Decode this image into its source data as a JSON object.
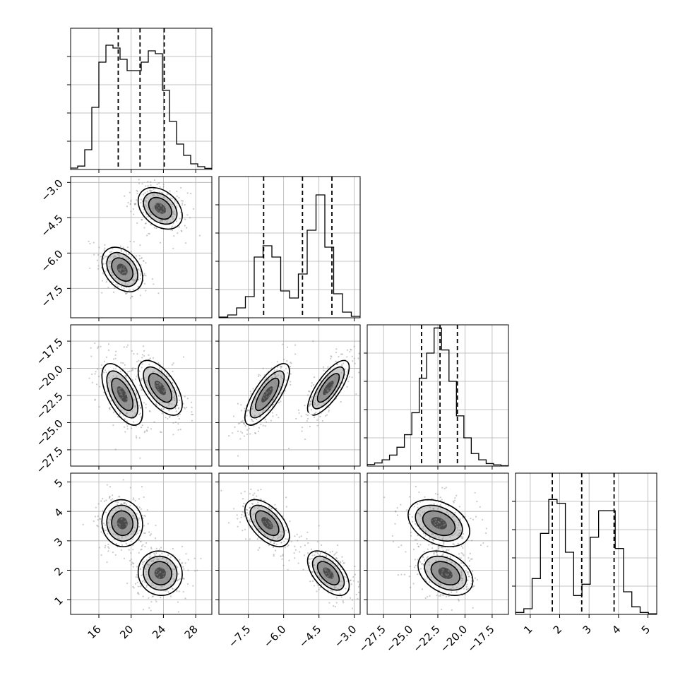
{
  "chart_data": {
    "type": "corner",
    "grid": true,
    "parameters": [
      {
        "range": [
          12.5,
          30
        ],
        "ticks": [
          16,
          20,
          24,
          28
        ],
        "tick_labels": [
          "16",
          "20",
          "24",
          "28"
        ],
        "quantiles": [
          18.4,
          21.1,
          24.1
        ],
        "hist": [
          0.005,
          0.012,
          0.07,
          0.22,
          0.38,
          0.44,
          0.43,
          0.39,
          0.35,
          0.35,
          0.38,
          0.42,
          0.41,
          0.28,
          0.17,
          0.09,
          0.05,
          0.02,
          0.01,
          0.004
        ],
        "hist_ylim": [
          0,
          0.5
        ]
      },
      {
        "range": [
          -8.75,
          -2.75
        ],
        "ticks": [
          -7.5,
          -6.0,
          -4.5,
          -3.0
        ],
        "tick_labels": [
          "−7.5",
          "−6.0",
          "−4.5",
          "−3.0"
        ],
        "quantiles": [
          -6.85,
          -5.2,
          -3.95
        ],
        "hist": [
          0.005,
          0.02,
          0.07,
          0.15,
          0.43,
          0.51,
          0.43,
          0.19,
          0.14,
          0.31,
          0.62,
          0.87,
          0.5,
          0.17,
          0.04,
          0.01
        ],
        "hist_ylim": [
          0,
          1.0
        ]
      },
      {
        "range": [
          -29,
          -16
        ],
        "ticks": [
          -27.5,
          -25.0,
          -22.5,
          -20.0,
          -17.5
        ],
        "tick_labels": [
          "−27.5",
          "−25.0",
          "−22.5",
          "−20.0",
          "−17.5"
        ],
        "quantiles": [
          -24.0,
          -22.3,
          -20.7
        ],
        "hist": [
          0.005,
          0.01,
          0.02,
          0.035,
          0.06,
          0.1,
          0.17,
          0.28,
          0.36,
          0.44,
          0.37,
          0.27,
          0.16,
          0.09,
          0.04,
          0.02,
          0.008,
          0.004,
          0.001
        ],
        "hist_ylim": [
          0,
          0.45
        ]
      },
      {
        "range": [
          0.5,
          5.3
        ],
        "ticks": [
          1,
          2,
          3,
          4,
          5
        ],
        "tick_labels": [
          "1",
          "2",
          "3",
          "4",
          "5"
        ],
        "quantiles": [
          1.75,
          2.75,
          3.85
        ],
        "hist": [
          0.01,
          0.03,
          0.19,
          0.43,
          0.61,
          0.59,
          0.33,
          0.1,
          0.16,
          0.41,
          0.55,
          0.55,
          0.35,
          0.12,
          0.04,
          0.01,
          0.003
        ],
        "hist_ylim": [
          0,
          0.75
        ]
      }
    ],
    "modes": [
      {
        "center": [
          18.9,
          -6.7,
          -22.4,
          3.6
        ],
        "sd": [
          1.2,
          0.45,
          1.35,
          0.38
        ],
        "weight": 0.5
      },
      {
        "center": [
          23.6,
          -4.1,
          -21.8,
          1.9
        ],
        "sd": [
          1.3,
          0.42,
          1.2,
          0.36
        ],
        "weight": 0.5
      }
    ],
    "pair_correlations": {
      "1-0": -0.35,
      "2-0": -0.6,
      "2-1": 0.75,
      "3-0": -0.05,
      "3-1": -0.55,
      "3-2": -0.35
    }
  }
}
